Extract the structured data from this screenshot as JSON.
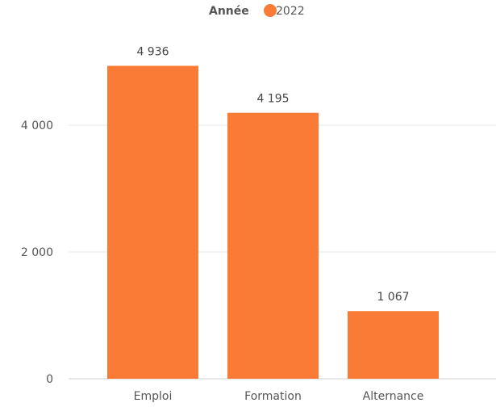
{
  "chart_data": {
    "type": "bar",
    "legend": {
      "title": "Année",
      "entries": [
        {
          "label": "2022",
          "color": "#F97B36"
        }
      ],
      "position": "top-center"
    },
    "categories": [
      "Emploi",
      "Formation",
      "Alternance"
    ],
    "series": [
      {
        "name": "2022",
        "color": "#F97B36",
        "values": [
          4936,
          4195,
          1067
        ]
      }
    ],
    "data_labels": [
      "4 936",
      "4 195",
      "1 067"
    ],
    "y_ticks": [
      0,
      2000,
      4000
    ],
    "y_tick_labels": [
      "0",
      "2 000",
      "4 000"
    ],
    "ylim": [
      0,
      5400
    ],
    "grid": true,
    "grid_color": "#E9E9E9",
    "axis_color": "#D0D0D0"
  }
}
